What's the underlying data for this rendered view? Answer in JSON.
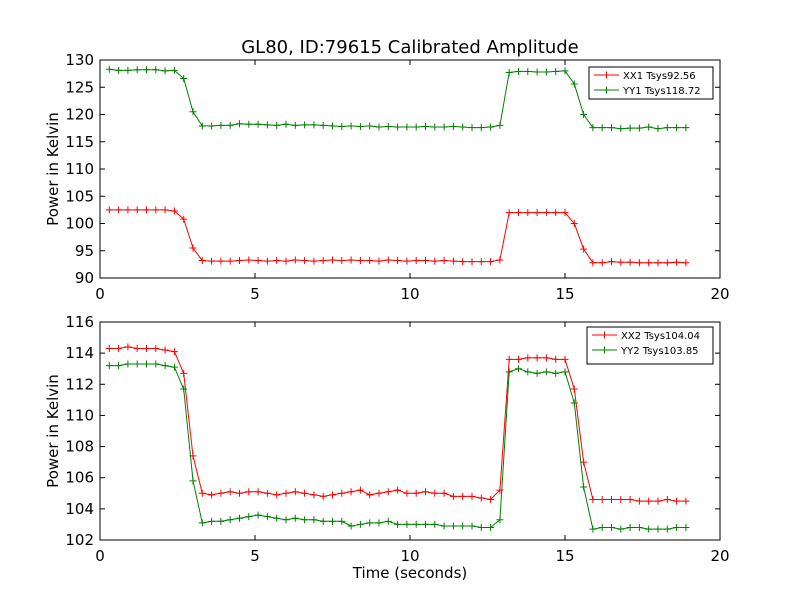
{
  "title": "GL80, ID:79615 Calibrated Amplitude",
  "colors": {
    "red": "#ff0000",
    "green": "#008000"
  },
  "chart_data": [
    {
      "type": "line",
      "xlabel": "",
      "ylabel": "Power in Kelvin",
      "xlim": [
        0,
        20
      ],
      "ylim": [
        90,
        130
      ],
      "xticks": [
        "0",
        "5",
        "10",
        "15",
        "20"
      ],
      "yticks": [
        "90",
        "95",
        "100",
        "105",
        "110",
        "115",
        "120",
        "125",
        "130"
      ],
      "grid": false,
      "legend_position": "top-right",
      "x": [
        0.3,
        0.6,
        0.9,
        1.2,
        1.5,
        1.8,
        2.1,
        2.4,
        2.7,
        3.0,
        3.3,
        3.6,
        3.9,
        4.2,
        4.5,
        4.8,
        5.1,
        5.4,
        5.7,
        6.0,
        6.3,
        6.6,
        6.9,
        7.2,
        7.5,
        7.8,
        8.1,
        8.4,
        8.7,
        9.0,
        9.3,
        9.6,
        9.9,
        10.2,
        10.5,
        10.8,
        11.1,
        11.4,
        11.7,
        12.0,
        12.3,
        12.6,
        12.9,
        13.2,
        13.5,
        13.8,
        14.1,
        14.4,
        14.7,
        15.0,
        15.3,
        15.6,
        15.9,
        16.2,
        16.5,
        16.8,
        17.1,
        17.4,
        17.7,
        18.0,
        18.3,
        18.6,
        18.9
      ],
      "series": [
        {
          "name": "XX1 Tsys92.56",
          "color": "#ff0000",
          "values": [
            102.5,
            102.5,
            102.5,
            102.5,
            102.5,
            102.5,
            102.5,
            102.3,
            100.8,
            95.5,
            93.2,
            93.1,
            93.1,
            93.1,
            93.2,
            93.3,
            93.2,
            93.1,
            93.2,
            93.1,
            93.3,
            93.2,
            93.1,
            93.2,
            93.3,
            93.2,
            93.3,
            93.2,
            93.2,
            93.1,
            93.3,
            93.2,
            93.1,
            93.2,
            93.2,
            93.1,
            93.2,
            93.1,
            93.0,
            93.0,
            93.0,
            93.0,
            93.3,
            102.0,
            102.0,
            102.0,
            102.0,
            102.0,
            102.0,
            102.0,
            100.0,
            95.3,
            92.8,
            92.8,
            93.0,
            92.9,
            92.9,
            92.8,
            92.8,
            92.8,
            92.8,
            92.9,
            92.8
          ]
        },
        {
          "name": "YY1 Tsys118.72",
          "color": "#008000",
          "values": [
            128.3,
            128.1,
            128.1,
            128.2,
            128.2,
            128.2,
            128.0,
            128.1,
            126.6,
            120.5,
            117.9,
            117.9,
            118.0,
            118.0,
            118.3,
            118.2,
            118.2,
            118.1,
            118.0,
            118.2,
            118.0,
            118.1,
            118.1,
            118.0,
            117.9,
            117.8,
            117.9,
            117.8,
            117.9,
            117.7,
            117.8,
            117.7,
            117.7,
            117.7,
            117.8,
            117.7,
            117.7,
            117.8,
            117.7,
            117.6,
            117.6,
            117.7,
            118.0,
            127.7,
            127.9,
            127.9,
            127.8,
            127.8,
            127.9,
            128.0,
            125.6,
            120.0,
            117.6,
            117.6,
            117.6,
            117.4,
            117.5,
            117.5,
            117.7,
            117.4,
            117.6,
            117.6,
            117.6
          ]
        }
      ]
    },
    {
      "type": "line",
      "xlabel": "Time (seconds)",
      "ylabel": "Power in Kelvin",
      "xlim": [
        0,
        20
      ],
      "ylim": [
        102,
        116
      ],
      "xticks": [
        "0",
        "5",
        "10",
        "15",
        "20"
      ],
      "yticks": [
        "102",
        "104",
        "106",
        "108",
        "110",
        "112",
        "114",
        "116"
      ],
      "grid": false,
      "legend_position": "top-right",
      "x": [
        0.3,
        0.6,
        0.9,
        1.2,
        1.5,
        1.8,
        2.1,
        2.4,
        2.7,
        3.0,
        3.3,
        3.6,
        3.9,
        4.2,
        4.5,
        4.8,
        5.1,
        5.4,
        5.7,
        6.0,
        6.3,
        6.6,
        6.9,
        7.2,
        7.5,
        7.8,
        8.1,
        8.4,
        8.7,
        9.0,
        9.3,
        9.6,
        9.9,
        10.2,
        10.5,
        10.8,
        11.1,
        11.4,
        11.7,
        12.0,
        12.3,
        12.6,
        12.9,
        13.2,
        13.5,
        13.8,
        14.1,
        14.4,
        14.7,
        15.0,
        15.3,
        15.6,
        15.9,
        16.2,
        16.5,
        16.8,
        17.1,
        17.4,
        17.7,
        18.0,
        18.3,
        18.6,
        18.9
      ],
      "series": [
        {
          "name": "XX2 Tsys104.04",
          "color": "#ff0000",
          "values": [
            114.3,
            114.3,
            114.4,
            114.3,
            114.3,
            114.3,
            114.2,
            114.1,
            112.7,
            107.4,
            105.0,
            104.9,
            105.0,
            105.1,
            105.0,
            105.1,
            105.1,
            105.0,
            104.9,
            105.0,
            105.1,
            105.0,
            104.9,
            104.8,
            104.9,
            105.0,
            105.1,
            105.2,
            104.9,
            105.0,
            105.1,
            105.2,
            105.0,
            105.0,
            105.1,
            105.0,
            105.0,
            104.8,
            104.8,
            104.8,
            104.7,
            104.6,
            105.2,
            113.6,
            113.6,
            113.7,
            113.7,
            113.7,
            113.6,
            113.6,
            111.7,
            107.0,
            104.6,
            104.6,
            104.6,
            104.6,
            104.6,
            104.5,
            104.5,
            104.5,
            104.6,
            104.5,
            104.5
          ]
        },
        {
          "name": "YY2 Tsys103.85",
          "color": "#008000",
          "values": [
            113.2,
            113.2,
            113.3,
            113.3,
            113.3,
            113.3,
            113.2,
            113.1,
            111.7,
            105.8,
            103.1,
            103.2,
            103.2,
            103.3,
            103.4,
            103.5,
            103.6,
            103.5,
            103.4,
            103.3,
            103.4,
            103.3,
            103.3,
            103.2,
            103.2,
            103.2,
            102.9,
            103.0,
            103.1,
            103.1,
            103.2,
            103.0,
            103.0,
            103.0,
            103.0,
            103.0,
            102.9,
            102.9,
            102.9,
            102.9,
            102.8,
            102.8,
            103.3,
            112.8,
            113.0,
            112.8,
            112.7,
            112.8,
            112.7,
            112.8,
            110.8,
            105.4,
            102.7,
            102.8,
            102.8,
            102.7,
            102.8,
            102.8,
            102.7,
            102.7,
            102.7,
            102.8,
            102.8
          ]
        }
      ]
    }
  ]
}
